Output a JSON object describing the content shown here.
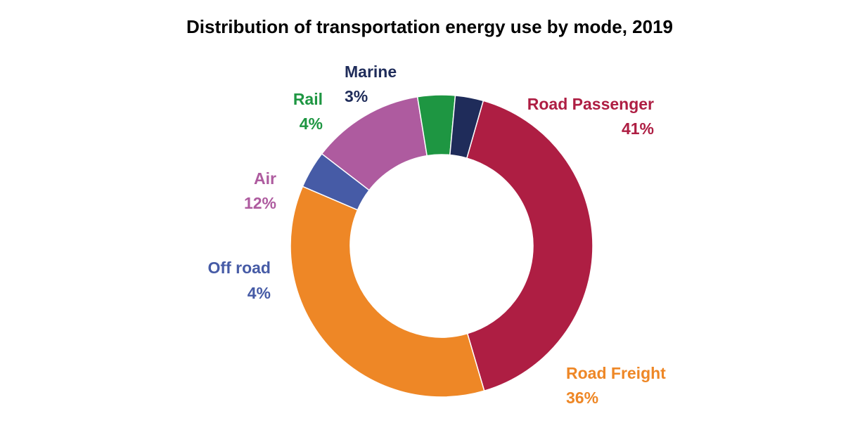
{
  "chart_data": {
    "type": "pie",
    "variant": "donut",
    "title": "Distribution of transportation energy use by mode, 2019",
    "slices": [
      {
        "name": "Road Passenger",
        "value": 41,
        "label": "41%",
        "color": "#AE1E43"
      },
      {
        "name": "Road Freight",
        "value": 36,
        "label": "36%",
        "color": "#EE8726"
      },
      {
        "name": "Off road",
        "value": 4,
        "label": "4%",
        "color": "#465BA6"
      },
      {
        "name": "Air",
        "value": 12,
        "label": "12%",
        "color": "#AE5B9F"
      },
      {
        "name": "Rail",
        "value": 4,
        "label": "4%",
        "color": "#1E9642"
      },
      {
        "name": "Marine",
        "value": 3,
        "label": "3%",
        "color": "#1F2C5A"
      }
    ]
  }
}
